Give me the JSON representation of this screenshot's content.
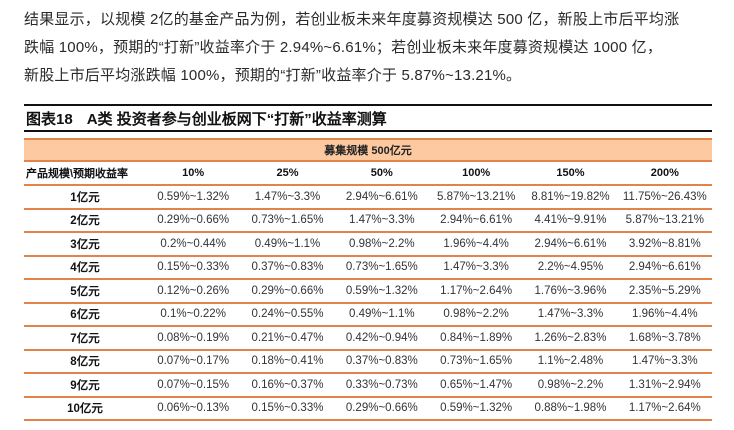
{
  "paragraph": {
    "lines": [
      "结果显示，以规模 2亿的基金产品为例，若创业板未来年度募资规模达 500 亿，新股上市后平均涨",
      "跌幅  100%，预期的“打新”收益率介于 2.94%~6.61%；若创业板未来年度募资规模达 1000 亿，",
      "新股上市后平均涨跌幅 100%，预期的“打新”收益率介于 5.87%~13.21%。"
    ]
  },
  "figure": {
    "number": "图表18",
    "title": "A类 投资者参与创业板网下“打新”收益率测算"
  },
  "table": {
    "band_label": "募集规模 500亿元",
    "row_header_label": "产品规模\\预期收益率",
    "columns": [
      "10%",
      "25%",
      "50%",
      "100%",
      "150%",
      "200%"
    ],
    "rows": [
      {
        "label": "1亿元",
        "values": [
          "0.59%~1.32%",
          "1.47%~3.3%",
          "2.94%~6.61%",
          "5.87%~13.21%",
          "8.81%~19.82%",
          "11.75%~26.43%"
        ]
      },
      {
        "label": "2亿元",
        "values": [
          "0.29%~0.66%",
          "0.73%~1.65%",
          "1.47%~3.3%",
          "2.94%~6.61%",
          "4.41%~9.91%",
          "5.87%~13.21%"
        ]
      },
      {
        "label": "3亿元",
        "values": [
          "0.2%~0.44%",
          "0.49%~1.1%",
          "0.98%~2.2%",
          "1.96%~4.4%",
          "2.94%~6.61%",
          "3.92%~8.81%"
        ]
      },
      {
        "label": "4亿元",
        "values": [
          "0.15%~0.33%",
          "0.37%~0.83%",
          "0.73%~1.65%",
          "1.47%~3.3%",
          "2.2%~4.95%",
          "2.94%~6.61%"
        ]
      },
      {
        "label": "5亿元",
        "values": [
          "0.12%~0.26%",
          "0.29%~0.66%",
          "0.59%~1.32%",
          "1.17%~2.64%",
          "1.76%~3.96%",
          "2.35%~5.29%"
        ]
      },
      {
        "label": "6亿元",
        "values": [
          "0.1%~0.22%",
          "0.24%~0.55%",
          "0.49%~1.1%",
          "0.98%~2.2%",
          "1.47%~3.3%",
          "1.96%~4.4%"
        ]
      },
      {
        "label": "7亿元",
        "values": [
          "0.08%~0.19%",
          "0.21%~0.47%",
          "0.42%~0.94%",
          "0.84%~1.89%",
          "1.26%~2.83%",
          "1.68%~3.78%"
        ]
      },
      {
        "label": "8亿元",
        "values": [
          "0.07%~0.17%",
          "0.18%~0.41%",
          "0.37%~0.83%",
          "0.73%~1.65%",
          "1.1%~2.48%",
          "1.47%~3.3%"
        ]
      },
      {
        "label": "9亿元",
        "values": [
          "0.07%~0.15%",
          "0.16%~0.37%",
          "0.33%~0.73%",
          "0.65%~1.47%",
          "0.98%~2.2%",
          "1.31%~2.94%"
        ]
      },
      {
        "label": "10亿元",
        "values": [
          "0.06%~0.13%",
          "0.15%~0.33%",
          "0.29%~0.66%",
          "0.59%~1.32%",
          "0.88%~1.98%",
          "1.17%~2.64%"
        ]
      }
    ]
  },
  "colors": {
    "band_fill": "#fcc9a0",
    "rule_orange": "#e2834a",
    "rule_black": "#111111"
  }
}
